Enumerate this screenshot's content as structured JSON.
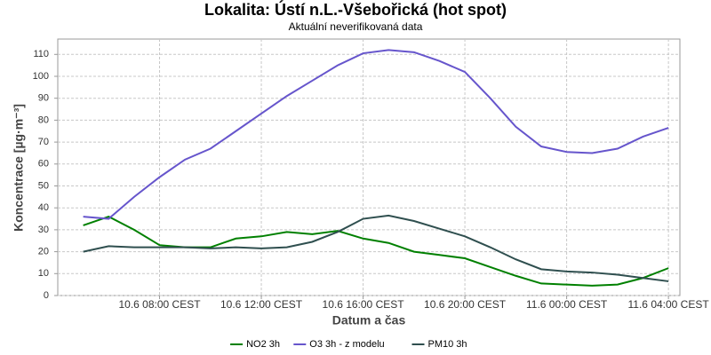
{
  "chart_data": {
    "type": "line",
    "title": "Lokalita: Ústí n.L.-Všebořická (hot spot)",
    "subtitle": "Aktuální neverifikovaná data",
    "xlabel": "Datum a čas",
    "ylabel": "Koncentrace [µg·m⁻³]",
    "x": [
      5,
      6,
      7,
      8,
      9,
      10,
      11,
      12,
      13,
      14,
      15,
      16,
      17,
      18,
      19,
      20,
      21,
      22,
      23,
      24,
      25,
      26,
      27,
      28
    ],
    "xlim": [
      4,
      28.45
    ],
    "xticks": [
      {
        "value": 8,
        "label": "10.6 08:00 CEST"
      },
      {
        "value": 12,
        "label": "10.6 12:00 CEST"
      },
      {
        "value": 16,
        "label": "10.6 16:00 CEST"
      },
      {
        "value": 20,
        "label": "10.6 20:00 CEST"
      },
      {
        "value": 24,
        "label": "11.6 00:00 CEST"
      },
      {
        "value": 28,
        "label": "11.6 04:00 CEST"
      }
    ],
    "ylim": [
      0,
      117
    ],
    "yticks": [
      0,
      10,
      20,
      30,
      40,
      50,
      60,
      70,
      80,
      90,
      100,
      110
    ],
    "grid": true,
    "legend": "bottom",
    "series": [
      {
        "name": "NO2 3h",
        "color": "#008000",
        "values": [
          32,
          36,
          30,
          23,
          22,
          22,
          26,
          27,
          29,
          28,
          29.5,
          26,
          24,
          20,
          18.5,
          17,
          13,
          9,
          5.5,
          5,
          4.5,
          5,
          8,
          12.5
        ]
      },
      {
        "name": "O3 3h - z modelu",
        "color": "#6655cc",
        "values": [
          36,
          35,
          45,
          54,
          62,
          67,
          75,
          83,
          91,
          98,
          105,
          110.5,
          112,
          111,
          107,
          102,
          90,
          77,
          68,
          65.5,
          65,
          67,
          72.5,
          76.5
        ]
      },
      {
        "name": "PM10 3h",
        "color": "#2f4f4f",
        "values": [
          20,
          22.5,
          22,
          22,
          22,
          21.5,
          22,
          21.5,
          22,
          24.5,
          29,
          35,
          36.5,
          34,
          30.5,
          27,
          22,
          16.5,
          12,
          11,
          10.5,
          9.5,
          8,
          6.5
        ]
      }
    ]
  }
}
